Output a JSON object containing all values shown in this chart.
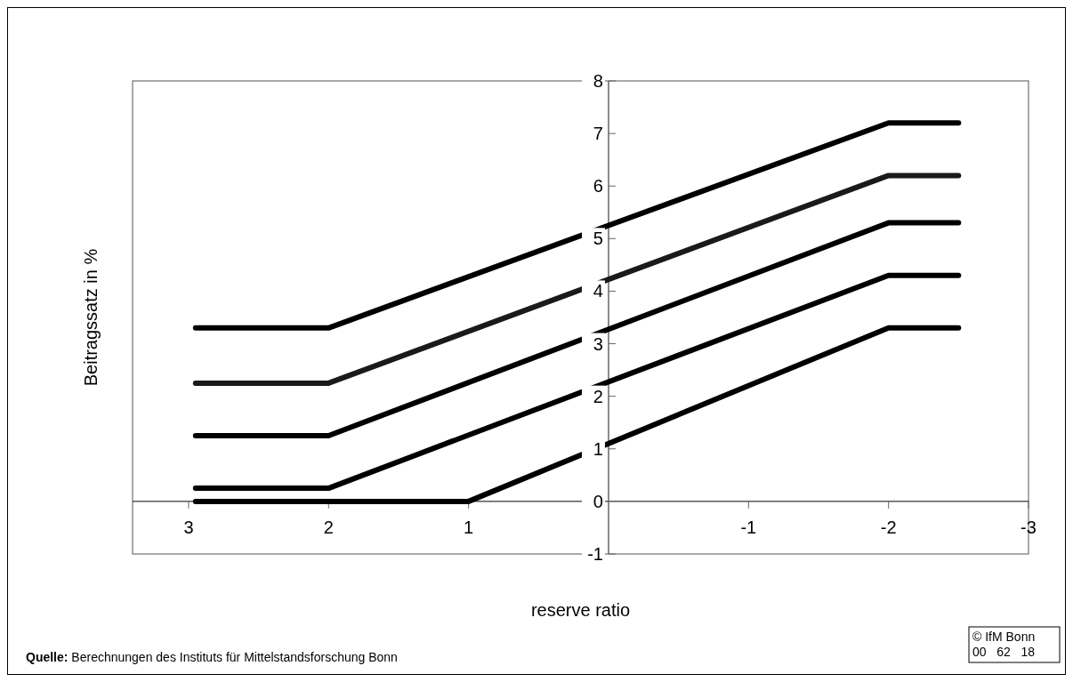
{
  "chart_data": {
    "type": "line",
    "xlabel": "reserve ratio",
    "ylabel": "Beitragssatz in %",
    "series": [
      {
        "color": "#000000",
        "x": [
          2.95,
          2,
          -2,
          -2.5
        ],
        "values": [
          3.3,
          3.3,
          7.2,
          7.2
        ]
      },
      {
        "color": "#1a1a1a",
        "x": [
          2.95,
          2,
          -2,
          -2.5
        ],
        "values": [
          2.25,
          2.25,
          6.2,
          6.2
        ]
      },
      {
        "color": "#000000",
        "x": [
          2.95,
          2,
          -2,
          -2.5
        ],
        "values": [
          1.25,
          1.25,
          5.3,
          5.3
        ]
      },
      {
        "color": "#000000",
        "x": [
          2.95,
          2,
          -2,
          -2.5
        ],
        "values": [
          0.25,
          0.25,
          4.3,
          4.3
        ]
      },
      {
        "color": "#000000",
        "x": [
          2.95,
          1,
          -2,
          -2.5
        ],
        "values": [
          0,
          0,
          3.3,
          3.3
        ]
      }
    ],
    "xlim": [
      3.4,
      -3
    ],
    "xticks": [
      3,
      2,
      1,
      -1,
      -2,
      -3
    ],
    "ylim": [
      -1,
      8
    ],
    "yticks": [
      -1,
      0,
      1,
      2,
      3,
      4,
      5,
      6,
      7,
      8
    ],
    "annotations": [
      "Quelle: Berechnungen des Instituts für Mittelstandsforschung Bonn",
      "© IfM Bonn",
      "00   62   18"
    ]
  }
}
